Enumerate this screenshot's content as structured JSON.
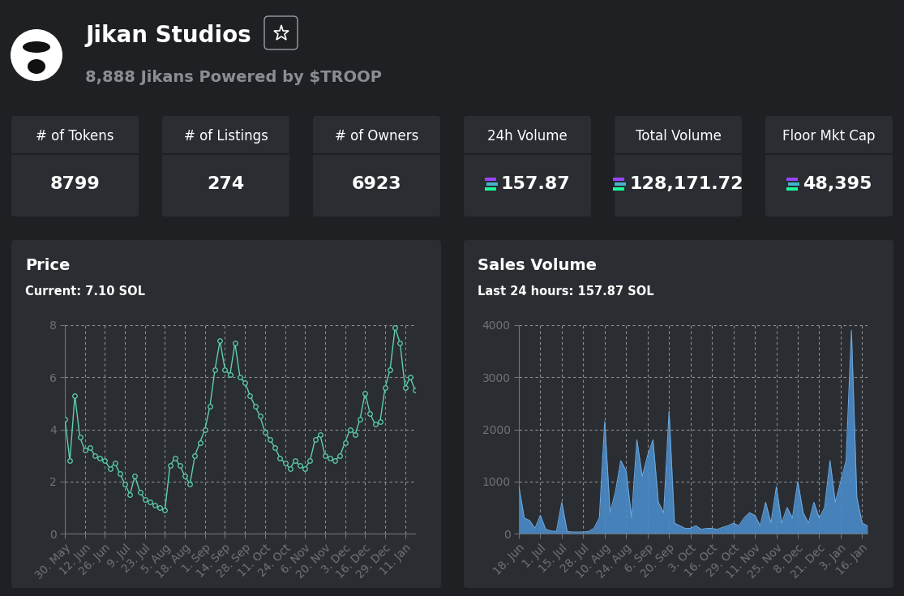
{
  "header": {
    "title": "Jikan Studios",
    "subtitle": "8,888 Jikans Powered by $TROOP"
  },
  "stats": [
    {
      "label": "# of Tokens",
      "value": "8799"
    },
    {
      "label": "# of Listings",
      "value": "274"
    },
    {
      "label": "# of Owners",
      "value": "6923"
    },
    {
      "label": "24h Volume",
      "value": "157.87"
    },
    {
      "label": "Total Volume",
      "value": "128,171.72"
    },
    {
      "label": "Floor Mkt Cap",
      "value": "48,395"
    }
  ],
  "chart_data": [
    {
      "type": "line",
      "title": "Price",
      "subtitle": "Current: 7.10 SOL",
      "categories": [
        "30. May",
        null,
        null,
        null,
        "12. Jun",
        null,
        null,
        null,
        "26. Jun",
        null,
        null,
        null,
        "9. Jul",
        null,
        null,
        null,
        "23. Jul",
        null,
        null,
        null,
        "5. Aug",
        null,
        null,
        null,
        "18. Aug",
        null,
        null,
        null,
        "1. Sep",
        null,
        null,
        null,
        "14. Sep",
        null,
        null,
        null,
        "28. Sep",
        null,
        null,
        null,
        "11. Oct",
        null,
        null,
        null,
        "24. Oct",
        null,
        null,
        null,
        "6. Nov",
        null,
        null,
        null,
        "20. Nov",
        null,
        null,
        null,
        "3. Dec",
        null,
        null,
        null,
        "16. Dec",
        null,
        null,
        null,
        "29. Dec",
        null,
        null,
        null,
        "11. Jan",
        null,
        null
      ],
      "values": [
        4.4,
        2.8,
        5.3,
        3.7,
        3.2,
        3.3,
        3.0,
        2.9,
        2.8,
        2.5,
        2.7,
        2.3,
        1.9,
        1.5,
        2.2,
        1.6,
        1.3,
        1.2,
        1.1,
        1.0,
        0.9,
        2.6,
        2.9,
        2.6,
        2.2,
        1.9,
        3.0,
        3.5,
        4.0,
        4.9,
        6.3,
        7.4,
        6.3,
        6.1,
        7.3,
        6.0,
        5.8,
        5.3,
        4.9,
        4.5,
        3.9,
        3.6,
        3.3,
        2.9,
        2.7,
        2.5,
        2.8,
        2.6,
        2.5,
        2.8,
        3.6,
        3.8,
        3.0,
        2.9,
        2.8,
        3.0,
        3.5,
        4.0,
        3.8,
        4.4,
        5.4,
        4.6,
        4.2,
        4.3,
        5.6,
        6.3,
        7.9,
        7.3,
        5.6,
        6.0,
        5.5
      ],
      "color": "#5ecfb1",
      "marker": "o",
      "ylim": [
        0,
        8
      ],
      "yticks": [
        0,
        2,
        4,
        6,
        8
      ],
      "grid": true
    },
    {
      "type": "area",
      "title": "Sales Volume",
      "subtitle": "Last 24 hours: 157.87 SOL",
      "categories": [
        "18. Jun",
        null,
        null,
        null,
        "1. Jul",
        null,
        null,
        null,
        "15. Jul",
        null,
        null,
        null,
        "28. Jul",
        null,
        null,
        null,
        "10. Aug",
        null,
        null,
        null,
        "24. Aug",
        null,
        null,
        null,
        "6. Sep",
        null,
        null,
        null,
        "20. Sep",
        null,
        null,
        null,
        "3. Oct",
        null,
        null,
        null,
        "16. Oct",
        null,
        null,
        null,
        "29. Oct",
        null,
        null,
        null,
        "11. Nov",
        null,
        null,
        null,
        "25. Nov",
        null,
        null,
        null,
        "8. Dec",
        null,
        null,
        null,
        "21. Dec",
        null,
        null,
        null,
        "3. Jan",
        null,
        null,
        null,
        "16. Jan",
        null
      ],
      "values": [
        900,
        300,
        250,
        100,
        350,
        80,
        50,
        40,
        600,
        40,
        30,
        30,
        30,
        40,
        100,
        300,
        2150,
        400,
        800,
        1400,
        1200,
        300,
        1800,
        1100,
        1500,
        1800,
        600,
        400,
        2350,
        200,
        150,
        100,
        100,
        150,
        80,
        100,
        100,
        80,
        120,
        150,
        200,
        150,
        300,
        400,
        350,
        150,
        600,
        200,
        900,
        200,
        500,
        300,
        1000,
        400,
        200,
        600,
        300,
        500,
        1400,
        600,
        1000,
        1400,
        3900,
        700,
        200,
        150
      ],
      "color": "#4a8bc9",
      "ylim": [
        0,
        4000
      ],
      "yticks": [
        0,
        1000,
        2000,
        3000,
        4000
      ],
      "grid": true
    }
  ]
}
